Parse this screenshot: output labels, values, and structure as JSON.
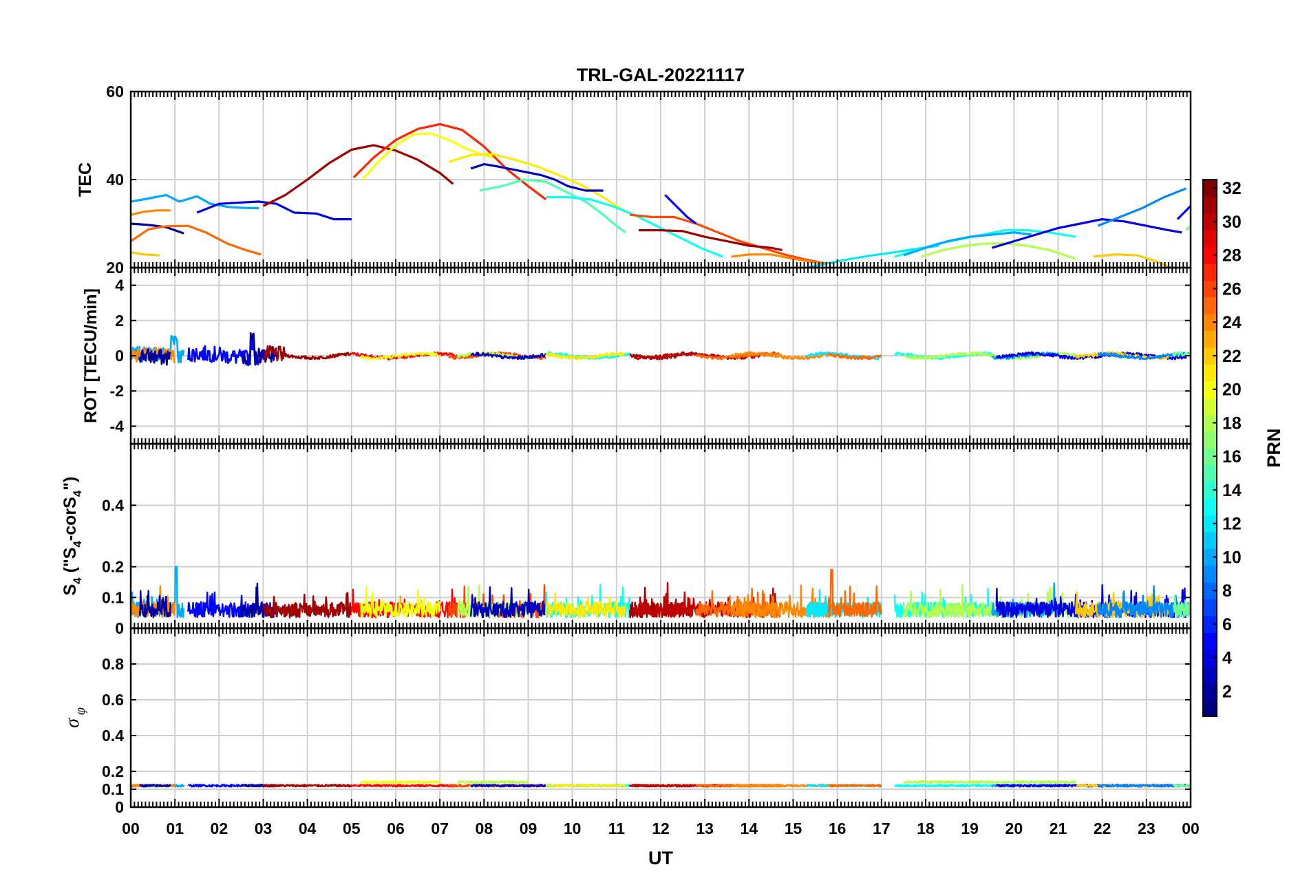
{
  "title": "TRL-GAL-20221117",
  "xlabel": "UT",
  "x_ticks": [
    "00",
    "01",
    "02",
    "03",
    "04",
    "05",
    "06",
    "07",
    "08",
    "09",
    "10",
    "11",
    "12",
    "13",
    "14",
    "15",
    "16",
    "17",
    "18",
    "19",
    "20",
    "21",
    "22",
    "23",
    "00"
  ],
  "colorbar": {
    "label": "PRN",
    "range": [
      1,
      32
    ],
    "ticks": [
      "2",
      "4",
      "6",
      "8",
      "10",
      "12",
      "14",
      "16",
      "18",
      "20",
      "22",
      "24",
      "26",
      "28",
      "30",
      "32"
    ]
  },
  "chart_data": [
    {
      "type": "line",
      "name": "TEC",
      "ylabel": "TEC",
      "ylim": [
        20,
        60
      ],
      "yticks": [
        "20",
        "40",
        "60"
      ],
      "xlim": [
        0,
        24
      ],
      "series": [
        {
          "prn": 10,
          "x": [
            0.0,
            0.4,
            0.8,
            1.1,
            1.5,
            1.8,
            2.2,
            2.5,
            2.9
          ],
          "y": [
            35.0,
            35.7,
            36.5,
            35.0,
            36.2,
            34.5,
            33.8,
            33.6,
            33.5
          ]
        },
        {
          "prn": 2,
          "x": [
            0.0,
            0.4,
            0.8,
            1.2
          ],
          "y": [
            30.0,
            29.7,
            29.2,
            27.8
          ]
        },
        {
          "prn": 24,
          "x": [
            0.0,
            0.3,
            0.6,
            0.9
          ],
          "y": [
            32.0,
            32.7,
            33.0,
            33.0
          ]
        },
        {
          "prn": 25,
          "x": [
            0.0,
            0.4,
            0.8,
            1.3,
            1.7,
            2.2,
            2.6,
            2.95
          ],
          "y": [
            26.0,
            28.7,
            29.4,
            29.5,
            28.0,
            25.4,
            24.0,
            23.0
          ]
        },
        {
          "prn": 22,
          "x": [
            0.0,
            0.3,
            0.65
          ],
          "y": [
            23.5,
            23.0,
            22.8
          ]
        },
        {
          "prn": 4,
          "x": [
            1.5,
            2.0,
            2.5,
            2.9,
            3.3,
            3.7,
            4.2,
            4.6,
            5.0
          ],
          "y": [
            32.5,
            34.5,
            34.8,
            35.0,
            34.5,
            32.5,
            32.3,
            31.0,
            31.0
          ]
        },
        {
          "prn": 31,
          "x": [
            3.0,
            3.5,
            4.0,
            4.5,
            5.0,
            5.5,
            6.0,
            6.5,
            7.0,
            7.3
          ],
          "y": [
            34.0,
            36.5,
            40.0,
            43.8,
            46.8,
            47.8,
            46.6,
            44.5,
            41.5,
            39.0
          ]
        },
        {
          "prn": 27,
          "x": [
            5.05,
            5.5,
            6.0,
            6.5,
            7.0,
            7.5,
            8.0,
            8.5,
            9.0,
            9.4
          ],
          "y": [
            40.5,
            45.0,
            49.0,
            51.5,
            52.6,
            51.3,
            47.5,
            42.5,
            38.5,
            35.5
          ]
        },
        {
          "prn": 20,
          "x": [
            5.25,
            5.6,
            6.0,
            6.4,
            6.8,
            7.2,
            7.6,
            8.0,
            8.2
          ],
          "y": [
            40.0,
            44.0,
            47.8,
            50.3,
            50.5,
            49.0,
            47.0,
            45.5,
            45.0
          ]
        },
        {
          "prn": 21,
          "x": [
            7.2,
            7.7,
            8.2,
            8.7,
            9.2,
            9.7,
            10.2,
            10.7,
            11.0,
            11.2
          ],
          "y": [
            44.0,
            45.6,
            45.8,
            44.5,
            43.0,
            41.0,
            38.8,
            36.0,
            34.0,
            32.5
          ]
        },
        {
          "prn": 3,
          "x": [
            7.7,
            8.0,
            8.3,
            8.8,
            9.3,
            9.6,
            9.9,
            10.3,
            10.7
          ],
          "y": [
            42.5,
            43.5,
            43.0,
            42.0,
            41.0,
            40.0,
            38.5,
            37.5,
            37.5
          ]
        },
        {
          "prn": 15,
          "x": [
            7.9,
            8.4,
            8.9,
            9.4,
            9.9,
            10.3,
            10.7,
            11.0,
            11.2
          ],
          "y": [
            37.5,
            38.5,
            40.0,
            39.5,
            37.0,
            35.0,
            32.0,
            29.5,
            28.0
          ]
        },
        {
          "prn": 13,
          "x": [
            9.4,
            9.9,
            10.4,
            10.9,
            11.4,
            11.9,
            12.4,
            12.9,
            13.4
          ],
          "y": [
            36.0,
            36.0,
            35.5,
            34.0,
            32.0,
            29.5,
            27.0,
            24.5,
            22.5
          ]
        },
        {
          "prn": 26,
          "x": [
            11.3,
            11.8,
            12.3,
            12.8,
            13.3,
            13.8,
            14.3,
            14.8,
            15.3,
            15.7
          ],
          "y": [
            32.0,
            31.5,
            31.5,
            30.0,
            28.0,
            26.0,
            24.5,
            23.0,
            21.8,
            21.0
          ]
        },
        {
          "prn": 31,
          "x": [
            11.5,
            12.0,
            12.5,
            13.0,
            13.5,
            14.0,
            14.5,
            14.75
          ],
          "y": [
            28.5,
            28.5,
            28.3,
            27.0,
            26.0,
            25.0,
            24.5,
            24.0
          ]
        },
        {
          "prn": 5,
          "x": [
            12.1,
            12.4,
            12.6,
            12.8
          ],
          "y": [
            36.5,
            33.5,
            31.5,
            30.0
          ]
        },
        {
          "prn": 24,
          "x": [
            13.6,
            14.0,
            14.5,
            15.0,
            15.5,
            15.9
          ],
          "y": [
            22.5,
            23.0,
            23.0,
            22.0,
            21.2,
            21.0
          ]
        },
        {
          "prn": 12,
          "x": [
            15.3,
            15.8,
            16.3,
            16.8,
            17.3,
            17.8,
            18.3
          ],
          "y": [
            20.0,
            21.0,
            22.0,
            22.8,
            23.5,
            24.3,
            25.0
          ]
        },
        {
          "prn": 13,
          "x": [
            17.3,
            17.8,
            18.3,
            18.8,
            19.3,
            19.8,
            20.3,
            20.8,
            21.4
          ],
          "y": [
            22.5,
            24.0,
            25.5,
            26.5,
            27.5,
            28.5,
            28.5,
            28.0,
            27.0
          ]
        },
        {
          "prn": 10,
          "x": [
            17.5,
            18.0,
            18.5,
            19.0,
            19.5,
            20.0,
            20.4
          ],
          "y": [
            22.8,
            24.5,
            26.0,
            27.0,
            27.5,
            28.0,
            27.5
          ]
        },
        {
          "prn": 18,
          "x": [
            17.9,
            18.4,
            18.9,
            19.4,
            19.8,
            20.3,
            20.8,
            21.4
          ],
          "y": [
            22.5,
            24.0,
            25.0,
            25.5,
            25.5,
            25.0,
            24.0,
            22.0
          ]
        },
        {
          "prn": 4,
          "x": [
            19.5,
            20.0,
            20.5,
            21.0,
            21.5,
            22.0,
            22.5,
            23.0,
            23.5,
            23.8
          ],
          "y": [
            24.5,
            26.0,
            27.5,
            29.0,
            30.0,
            31.0,
            30.5,
            29.5,
            28.5,
            28.0
          ]
        },
        {
          "prn": 22,
          "x": [
            21.8,
            22.3,
            22.8,
            23.2,
            23.55
          ],
          "y": [
            22.5,
            23.0,
            22.8,
            21.5,
            20.0
          ]
        },
        {
          "prn": 9,
          "x": [
            21.9,
            22.4,
            22.9,
            23.4,
            23.9
          ],
          "y": [
            29.5,
            31.5,
            33.5,
            36.0,
            38.0
          ]
        },
        {
          "prn": 5,
          "x": [
            23.7,
            23.85,
            24.0
          ],
          "y": [
            31.0,
            32.5,
            34.0
          ]
        },
        {
          "prn": 16,
          "x": [
            23.9,
            24.0
          ],
          "y": [
            28.5,
            29.5
          ]
        }
      ]
    },
    {
      "type": "line",
      "name": "ROT",
      "ylabel": "ROT [TECU/min]",
      "ylim": [
        -5,
        5
      ],
      "yticks": [
        "-4",
        "-2",
        "0",
        "2",
        "4"
      ],
      "xlim": [
        0,
        24
      ],
      "description": "All satellite traces are flat near 0 TECU/min (within about ±1), with short spikes up to about +1.2 near 01 UT and 03 UT."
    },
    {
      "type": "line",
      "name": "S4",
      "ylabel": "S_4 (\"S_4-corS_4\")",
      "ylim": [
        0,
        0.6
      ],
      "yticks": [
        "0",
        "0.1",
        "0.2",
        "0.4"
      ],
      "xlim": [
        0,
        24
      ],
      "description": "S4 stays below about 0.1 for all satellites, with isolated peaks up to about 0.2 near 01 UT and 0.19 near 16 UT."
    },
    {
      "type": "line",
      "name": "sigma_phi",
      "ylabel": "σ_φ",
      "ylim": [
        0,
        1
      ],
      "yticks": [
        "0",
        "0.1",
        "0.2",
        "0.4",
        "0.6",
        "0.8"
      ],
      "xlim": [
        0,
        24
      ],
      "description": "Phase scintillation index stays nearly constant around 0.12–0.16 for all satellites through the day."
    }
  ]
}
